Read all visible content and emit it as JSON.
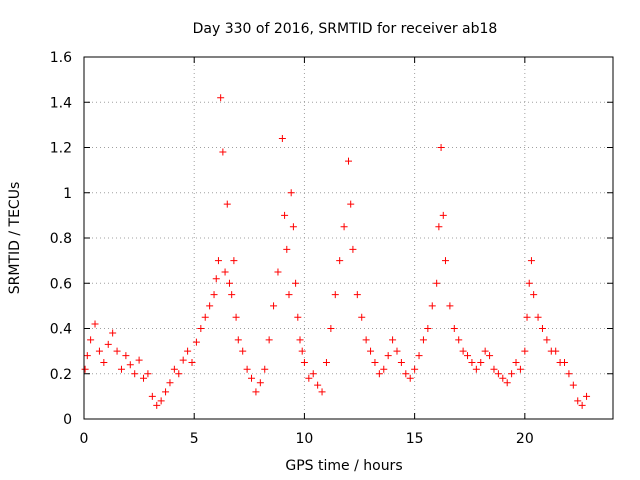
{
  "chart_data": {
    "type": "scatter",
    "title": "Day 330 of 2016, SRMTID for receiver ab18",
    "xlabel": "GPS time / hours",
    "ylabel": "SRMTID / TECUs",
    "xlim": [
      0,
      24
    ],
    "ylim": [
      0,
      1.6
    ],
    "x_ticks": [
      0,
      5,
      10,
      15,
      20
    ],
    "x_tick_labels": [
      "0",
      "5",
      "10",
      "15",
      "20"
    ],
    "y_ticks": [
      0,
      0.2,
      0.4,
      0.6,
      0.8,
      1,
      1.2,
      1.4,
      1.6
    ],
    "y_tick_labels": [
      "0",
      "0.2",
      "0.4",
      "0.6",
      "0.8",
      "1",
      "1.2",
      "1.4",
      "1.6"
    ],
    "grid": true,
    "marker": "+",
    "color": "#ff0000",
    "series": [
      {
        "name": "SRMTID",
        "x": [
          0.05,
          0.15,
          0.3,
          0.5,
          0.7,
          0.9,
          1.1,
          1.3,
          1.5,
          1.7,
          1.9,
          2.1,
          2.3,
          2.5,
          2.7,
          2.9,
          3.1,
          3.3,
          3.5,
          3.7,
          3.9,
          4.1,
          4.3,
          4.5,
          4.7,
          4.9,
          5.1,
          5.3,
          5.5,
          5.7,
          5.9,
          6.0,
          6.1,
          6.2,
          6.3,
          6.4,
          6.5,
          6.6,
          6.7,
          6.8,
          6.9,
          7.0,
          7.2,
          7.4,
          7.6,
          7.8,
          8.0,
          8.2,
          8.4,
          8.6,
          8.8,
          9.0,
          9.1,
          9.2,
          9.3,
          9.4,
          9.5,
          9.6,
          9.7,
          9.8,
          9.9,
          10.0,
          10.2,
          10.4,
          10.6,
          10.8,
          11.0,
          11.2,
          11.4,
          11.6,
          11.8,
          12.0,
          12.1,
          12.2,
          12.4,
          12.6,
          12.8,
          13.0,
          13.2,
          13.4,
          13.6,
          13.8,
          14.0,
          14.2,
          14.4,
          14.6,
          14.8,
          15.0,
          15.2,
          15.4,
          15.6,
          15.8,
          16.0,
          16.1,
          16.2,
          16.3,
          16.4,
          16.6,
          16.8,
          17.0,
          17.2,
          17.4,
          17.6,
          17.8,
          18.0,
          18.2,
          18.4,
          18.6,
          18.8,
          19.0,
          19.2,
          19.4,
          19.6,
          19.8,
          20.0,
          20.1,
          20.2,
          20.3,
          20.4,
          20.6,
          20.8,
          21.0,
          21.2,
          21.4,
          21.6,
          21.8,
          22.0,
          22.2,
          22.4,
          22.6,
          22.8
        ],
        "y": [
          0.22,
          0.28,
          0.35,
          0.42,
          0.3,
          0.25,
          0.33,
          0.38,
          0.3,
          0.22,
          0.28,
          0.24,
          0.2,
          0.26,
          0.18,
          0.2,
          0.1,
          0.06,
          0.08,
          0.12,
          0.16,
          0.22,
          0.2,
          0.26,
          0.3,
          0.25,
          0.34,
          0.4,
          0.45,
          0.5,
          0.55,
          0.62,
          0.7,
          1.42,
          1.18,
          0.65,
          0.95,
          0.6,
          0.55,
          0.7,
          0.45,
          0.35,
          0.3,
          0.22,
          0.18,
          0.12,
          0.16,
          0.22,
          0.35,
          0.5,
          0.65,
          1.24,
          0.9,
          0.75,
          0.55,
          1.0,
          0.85,
          0.6,
          0.45,
          0.35,
          0.3,
          0.25,
          0.18,
          0.2,
          0.15,
          0.12,
          0.25,
          0.4,
          0.55,
          0.7,
          0.85,
          1.14,
          0.95,
          0.75,
          0.55,
          0.45,
          0.35,
          0.3,
          0.25,
          0.2,
          0.22,
          0.28,
          0.35,
          0.3,
          0.25,
          0.2,
          0.18,
          0.22,
          0.28,
          0.35,
          0.4,
          0.5,
          0.6,
          0.85,
          1.2,
          0.9,
          0.7,
          0.5,
          0.4,
          0.35,
          0.3,
          0.28,
          0.25,
          0.22,
          0.25,
          0.3,
          0.28,
          0.22,
          0.2,
          0.18,
          0.16,
          0.2,
          0.25,
          0.22,
          0.3,
          0.45,
          0.6,
          0.7,
          0.55,
          0.45,
          0.4,
          0.35,
          0.3,
          0.3,
          0.25,
          0.25,
          0.2,
          0.15,
          0.08,
          0.06,
          0.1
        ]
      }
    ]
  }
}
